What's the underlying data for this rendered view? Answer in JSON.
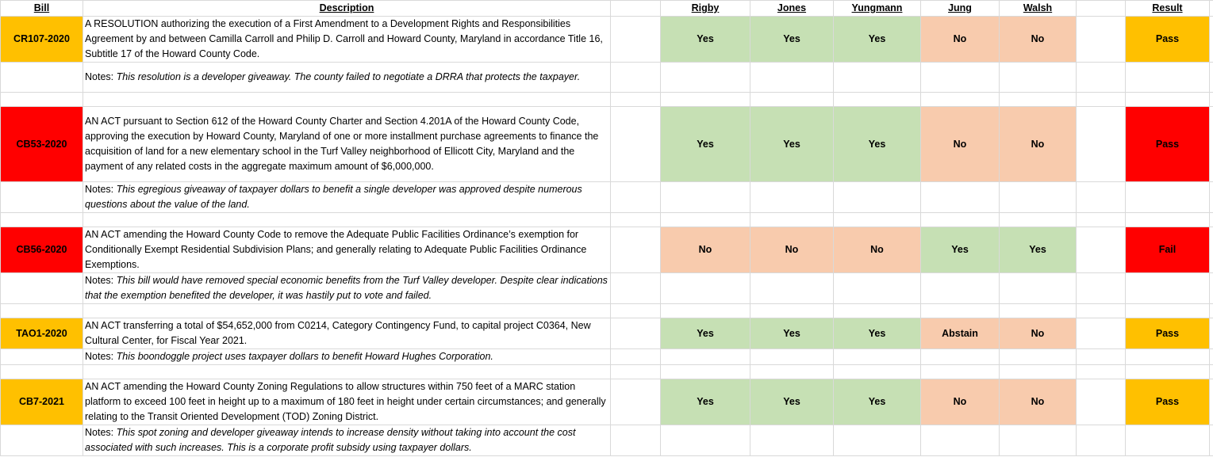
{
  "headers": {
    "bill": "Bill",
    "description": "Description",
    "rigby": "Rigby",
    "jones": "Jones",
    "yungmann": "Yungmann",
    "jung": "Jung",
    "walsh": "Walsh",
    "result": "Result"
  },
  "colors": {
    "yes": "#c6e0b4",
    "no": "#f8cbad",
    "pass_orange": "#ffc000",
    "red": "#ff0000",
    "grid": "#d9d9d9"
  },
  "notes_prefix": "Notes: ",
  "rows": [
    {
      "bill": "CR107-2020",
      "bill_color": "#ffc000",
      "description": "A RESOLUTION authorizing the execution of a First Amendment to a Development Rights and Responsibilities Agreement by and between Camilla Carroll and Philip D. Carroll and Howard County, Maryland in accordance Title 16, Subtitle 17 of the Howard County Code.",
      "notes": "This resolution is a developer giveaway. The county failed to negotiate a DRRA that protects the taxpayer.",
      "votes": [
        "Yes",
        "Yes",
        "Yes",
        "No",
        "No"
      ],
      "result": "Pass",
      "result_color": "#ffc000"
    },
    {
      "bill": "CB53-2020",
      "bill_color": "#ff0000",
      "description": "AN ACT pursuant to Section 612 of the Howard County Charter and Section 4.201A of the Howard County Code, approving the execution by Howard County, Maryland of one or more installment purchase agreements to finance the acquisition of land for a new elementary school in the Turf Valley neighborhood of Ellicott City, Maryland and the payment of any related costs in the aggregate maximum amount of $6,000,000.",
      "notes": "This egregious giveaway of taxpayer dollars to benefit a single developer was approved despite numerous questions about the value of the land.",
      "votes": [
        "Yes",
        "Yes",
        "Yes",
        "No",
        "No"
      ],
      "result": "Pass",
      "result_color": "#ff0000"
    },
    {
      "bill": "CB56-2020",
      "bill_color": "#ff0000",
      "description": "AN ACT amending the Howard County Code to remove the Adequate Public Facilities Ordinance’s exemption for Conditionally Exempt Residential Subdivision Plans; and generally relating to Adequate Public Facilities Ordinance Exemptions.",
      "notes": "This bill would have removed special economic benefits from the Turf Valley developer. Despite clear indications that the exemption benefited the developer, it was hastily put to vote and failed.",
      "votes": [
        "No",
        "No",
        "No",
        "Yes",
        "Yes"
      ],
      "result": "Fail",
      "result_color": "#ff0000"
    },
    {
      "bill": "TAO1-2020",
      "bill_color": "#ffc000",
      "description": "AN ACT transferring a total of $54,652,000 from C0214, Category Contingency Fund, to capital project C0364, New Cultural Center, for Fiscal Year 2021.",
      "notes": "This boondoggle project uses taxpayer dollars to benefit Howard Hughes Corporation.",
      "votes": [
        "Yes",
        "Yes",
        "Yes",
        "Abstain",
        "No"
      ],
      "result": "Pass",
      "result_color": "#ffc000"
    },
    {
      "bill": "CB7-2021",
      "bill_color": "#ffc000",
      "description": "AN ACT amending the Howard County Zoning Regulations to allow structures within 750 feet of a MARC station platform to exceed 100 feet in height up to a maximum of 180 feet in height under certain circumstances; and generally relating to the Transit Oriented Development (TOD) Zoning District.",
      "notes": "This spot zoning and developer giveaway intends to increase density without taking into account the cost associated with such increases. This is a corporate profit subsidy using taxpayer dollars.",
      "votes": [
        "Yes",
        "Yes",
        "Yes",
        "No",
        "No"
      ],
      "result": "Pass",
      "result_color": "#ffc000"
    }
  ]
}
